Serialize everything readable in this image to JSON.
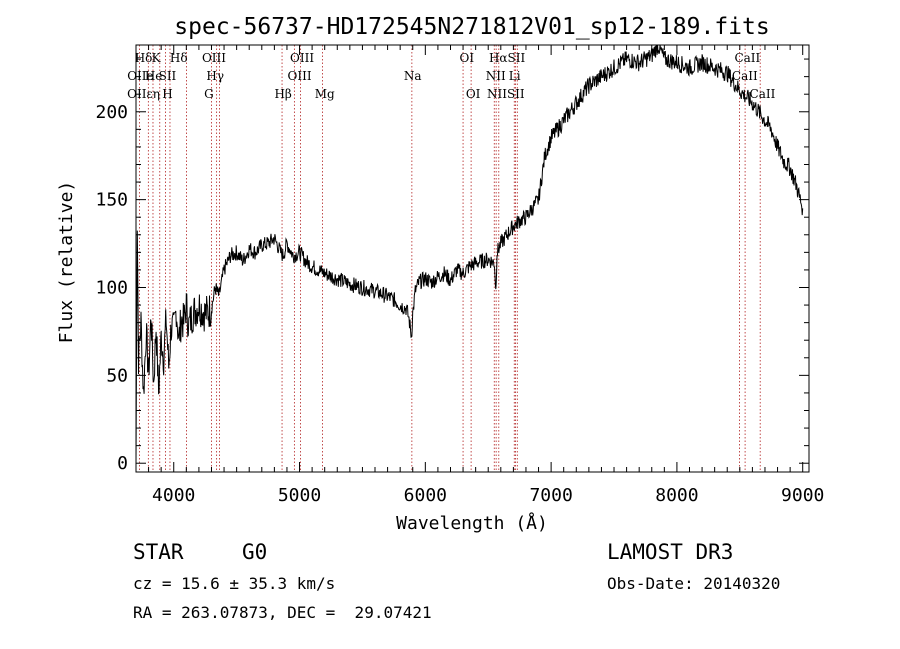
{
  "chart_data": {
    "type": "line",
    "title": "spec-56737-HD172545N271812V01_sp12-189.fits",
    "xlabel": "Wavelength (Å)",
    "ylabel": "Flux (relative)",
    "xlim": [
      3700,
      9050
    ],
    "ylim": [
      -5,
      238
    ],
    "xticks": [
      4000,
      5000,
      6000,
      7000,
      8000,
      9000
    ],
    "yticks": [
      0,
      50,
      100,
      150,
      200
    ],
    "series": [
      {
        "name": "spectrum",
        "x": [
          3700,
          3710,
          3720,
          3740,
          3760,
          3780,
          3800,
          3820,
          3840,
          3860,
          3880,
          3900,
          3920,
          3940,
          3960,
          3980,
          4000,
          4020,
          4040,
          4060,
          4080,
          4100,
          4120,
          4150,
          4200,
          4250,
          4300,
          4330,
          4360,
          4400,
          4450,
          4500,
          4550,
          4600,
          4650,
          4700,
          4750,
          4800,
          4850,
          4870,
          4900,
          4950,
          5000,
          5050,
          5100,
          5150,
          5200,
          5300,
          5400,
          5500,
          5600,
          5700,
          5750,
          5800,
          5850,
          5870,
          5890,
          5900,
          5920,
          5950,
          6000,
          6050,
          6100,
          6150,
          6200,
          6250,
          6300,
          6350,
          6400,
          6450,
          6500,
          6550,
          6560,
          6570,
          6600,
          6650,
          6700,
          6750,
          6800,
          6850,
          6900,
          6950,
          7000,
          7100,
          7200,
          7300,
          7400,
          7500,
          7600,
          7700,
          7800,
          7850,
          7900,
          8000,
          8100,
          8200,
          8300,
          8400,
          8500,
          8600,
          8650,
          8700,
          8750,
          8800,
          8850,
          8900,
          8950,
          8980,
          9000
        ],
        "values": [
          0,
          138,
          60,
          80,
          40,
          75,
          50,
          85,
          45,
          78,
          40,
          72,
          60,
          82,
          55,
          78,
          75,
          88,
          70,
          82,
          80,
          90,
          78,
          85,
          90,
          85,
          88,
          100,
          95,
          110,
          118,
          120,
          115,
          122,
          120,
          124,
          125,
          128,
          120,
          118,
          125,
          118,
          120,
          115,
          112,
          110,
          108,
          105,
          102,
          100,
          98,
          95,
          93,
          90,
          88,
          82,
          72,
          85,
          98,
          103,
          105,
          103,
          106,
          108,
          104,
          110,
          108,
          112,
          114,
          115,
          116,
          114,
          98,
          120,
          125,
          130,
          135,
          138,
          140,
          145,
          150,
          175,
          185,
          195,
          205,
          215,
          220,
          225,
          230,
          228,
          232,
          238,
          230,
          228,
          225,
          228,
          225,
          222,
          212,
          205,
          200,
          195,
          190,
          180,
          172,
          168,
          158,
          150,
          145
        ]
      }
    ],
    "line_labels": [
      "Hδ",
      "K",
      "Hδ",
      "OIII",
      "OIII",
      "OI",
      "HαSII",
      "OIIe",
      "He",
      "SII",
      "Hγ",
      "OIII",
      "Na",
      "NII",
      "Li",
      "OIIεη",
      "H",
      "G",
      "Hβ",
      "Mg",
      "OI",
      "NIISII",
      "CaII",
      "CaII",
      "CaII"
    ],
    "line_wavelengths": [
      3727,
      3798,
      3835,
      3889,
      3934,
      3970,
      4102,
      4300,
      4341,
      4364,
      4861,
      4959,
      5007,
      5183,
      5893,
      6300,
      6364,
      6548,
      6563,
      6584,
      6707,
      6717,
      6731,
      8498,
      8542,
      8662
    ]
  },
  "info": {
    "class_label": "STAR",
    "subclass": "G0",
    "survey": "LAMOST DR3",
    "cz_line": "cz = 15.6 ± 35.3 km/s",
    "obs_date": "Obs-Date: 20140320",
    "radec": "RA = 263.07873, DEC =  29.07421"
  }
}
